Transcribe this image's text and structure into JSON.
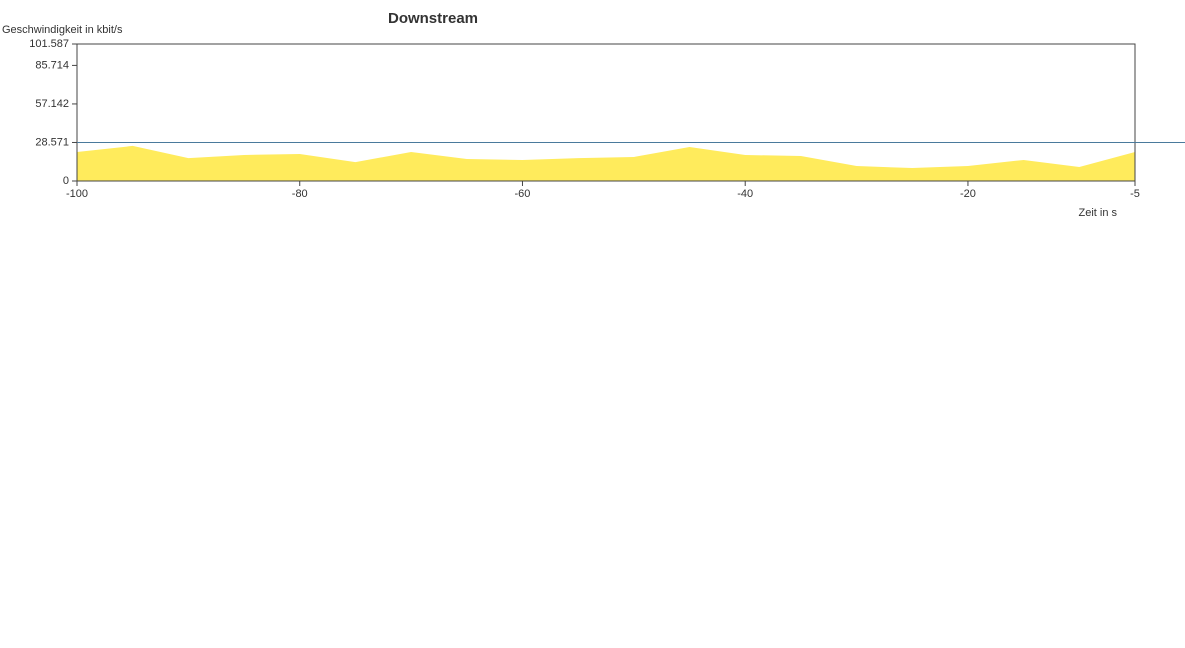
{
  "chart_data": {
    "type": "area",
    "title": "Downstream",
    "y_label": "Geschwindigkeit in kbit/s",
    "x_label": "Zeit in s",
    "x": [
      -100,
      -95,
      -90,
      -85,
      -80,
      -75,
      -70,
      -65,
      -60,
      -55,
      -50,
      -45,
      -40,
      -35,
      -30,
      -25,
      -20,
      -15,
      -10,
      -5
    ],
    "values": [
      21.5,
      26,
      17,
      19.3,
      20,
      14,
      21.5,
      16.3,
      15.6,
      17,
      17.8,
      25.2,
      19.3,
      18.5,
      11.1,
      9.6,
      11.1,
      15.6,
      10.4,
      21.5
    ],
    "color": "#ffeb5c",
    "reference_line": 28.571,
    "reference_color": "#4a7a9c",
    "xlim": [
      -100,
      -5
    ],
    "xticks": [
      -100,
      -80,
      -60,
      -40,
      -20,
      -5
    ],
    "ylim": [
      0,
      101.587
    ],
    "yticks": [
      0,
      28.571,
      57.142,
      85.714,
      101.587
    ]
  }
}
